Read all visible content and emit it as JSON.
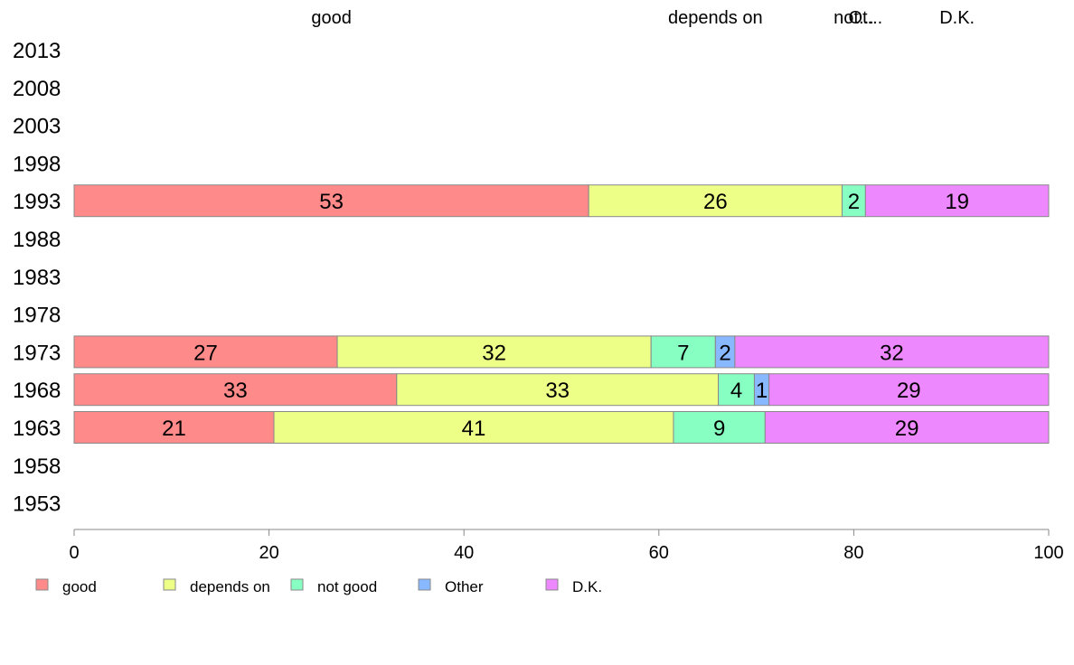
{
  "chart_data": {
    "type": "bar",
    "orientation": "horizontal",
    "stacked": true,
    "title": "",
    "xlabel": "",
    "ylabel": "",
    "xlim": [
      0,
      100
    ],
    "x_ticks": [
      "0",
      "20",
      "40",
      "60",
      "80",
      "100"
    ],
    "categories": [
      "2013",
      "2008",
      "2003",
      "1998",
      "1993",
      "1988",
      "1983",
      "1978",
      "1973",
      "1968",
      "1963",
      "1958",
      "1953"
    ],
    "series": [
      {
        "name": "good",
        "color": "#FF8A8A",
        "values": [
          null,
          null,
          null,
          null,
          52.8,
          null,
          null,
          null,
          27.0,
          33.1,
          20.5,
          null,
          null
        ]
      },
      {
        "name": "depends on",
        "color": "#EEFF88",
        "values": [
          null,
          null,
          null,
          null,
          26.0,
          null,
          null,
          null,
          32.2,
          33.0,
          41.0,
          null,
          null
        ]
      },
      {
        "name": "not good",
        "color": "#88FFC2",
        "values": [
          null,
          null,
          null,
          null,
          2.4,
          null,
          null,
          null,
          6.6,
          3.7,
          9.4,
          null,
          null
        ]
      },
      {
        "name": "Other",
        "color": "#88B8FF",
        "values": [
          null,
          null,
          null,
          null,
          0,
          null,
          null,
          null,
          2.0,
          1.5,
          0,
          null,
          null
        ]
      },
      {
        "name": "D.K.",
        "color": "#EE88FF",
        "values": [
          null,
          null,
          null,
          null,
          18.8,
          null,
          null,
          null,
          32.2,
          28.7,
          29.1,
          null,
          null
        ]
      }
    ],
    "data_labels": [
      [
        null,
        null,
        null,
        null,
        null
      ],
      [
        null,
        null,
        null,
        null,
        null
      ],
      [
        null,
        null,
        null,
        null,
        null
      ],
      [
        null,
        null,
        null,
        null,
        null
      ],
      [
        "53",
        "26",
        "2",
        "",
        "19"
      ],
      [
        null,
        null,
        null,
        null,
        null
      ],
      [
        null,
        null,
        null,
        null,
        null
      ],
      [
        null,
        null,
        null,
        null,
        null
      ],
      [
        "27",
        "32",
        "7",
        "2",
        "32"
      ],
      [
        "33",
        "33",
        "4",
        "1",
        "29"
      ],
      [
        "21",
        "41",
        "9",
        "",
        "29"
      ],
      [
        null,
        null,
        null,
        null,
        null
      ],
      [
        null,
        null,
        null,
        null,
        null
      ]
    ],
    "top_labels": [
      "good",
      "depends on",
      "not...",
      "Ot...",
      "D.K."
    ],
    "legend": {
      "position": "bottom",
      "items": [
        "good",
        "depends on",
        "not good",
        "Other",
        "D.K."
      ]
    },
    "grid": false
  }
}
